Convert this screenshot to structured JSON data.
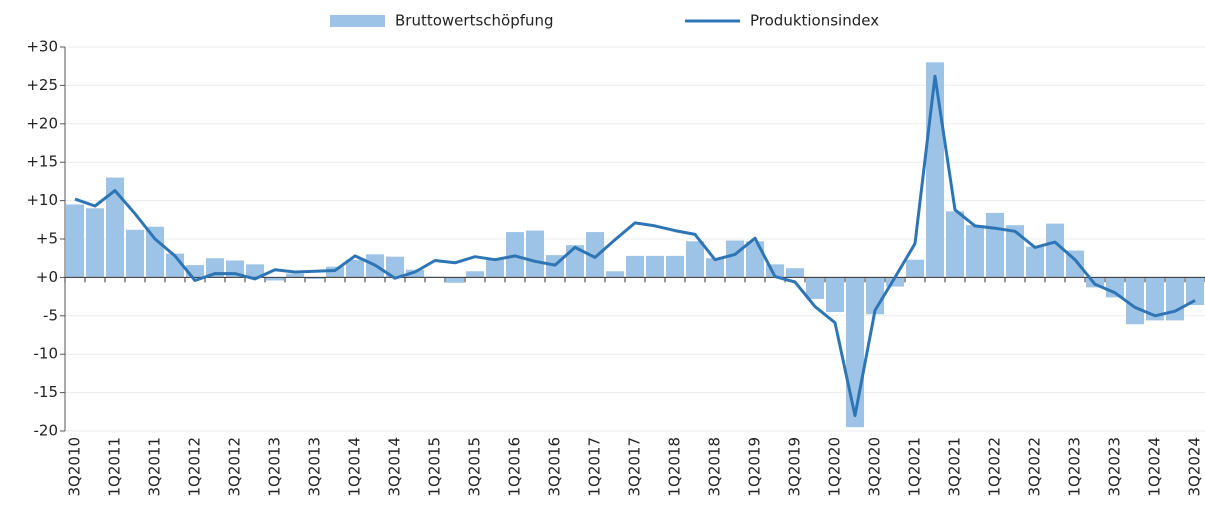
{
  "chart_data": {
    "type": "bar_line",
    "categories": [
      "3Q2010",
      null,
      "1Q2011",
      null,
      "3Q2011",
      null,
      "1Q2012",
      null,
      "3Q2012",
      null,
      "1Q2013",
      null,
      "3Q2013",
      null,
      "1Q2014",
      null,
      "3Q2014",
      null,
      "1Q2015",
      null,
      "3Q2015",
      null,
      "1Q2016",
      null,
      "3Q2016",
      null,
      "1Q2017",
      null,
      "3Q2017",
      null,
      "1Q2018",
      null,
      "3Q2018",
      null,
      "1Q2019",
      null,
      "3Q2019",
      null,
      "1Q2020",
      null,
      "3Q2020",
      null,
      "1Q2021",
      null,
      "3Q2021",
      null,
      "1Q2022",
      null,
      "3Q2022",
      null,
      "1Q2023",
      null,
      "3Q2023",
      null,
      "1Q2024",
      null,
      "3Q2024"
    ],
    "series": [
      {
        "name": "Bruttowertschöpfung",
        "type": "bar",
        "color": "#9dc3e6",
        "values": [
          9.5,
          9.0,
          13.0,
          6.2,
          6.6,
          3.1,
          1.6,
          2.5,
          2.2,
          1.7,
          -0.4,
          0.5,
          -0.2,
          1.4,
          2.3,
          3.0,
          2.7,
          1.0,
          0.1,
          -0.7,
          0.8,
          2.5,
          5.9,
          6.1,
          2.9,
          4.2,
          5.9,
          0.8,
          2.8,
          2.8,
          2.8,
          4.7,
          2.5,
          4.8,
          4.7,
          1.7,
          1.2,
          -2.8,
          -4.5,
          -19.5,
          -4.8,
          -1.2,
          2.3,
          28.0,
          8.6,
          6.8,
          8.4,
          6.8,
          4.0,
          7.0,
          3.5,
          -1.3,
          -2.6,
          -6.1,
          -5.6,
          -5.6,
          -3.6
        ]
      },
      {
        "name": "Produktionsindex",
        "type": "line",
        "color": "#2e75b6",
        "values": [
          10.2,
          9.3,
          11.3,
          8.3,
          5.0,
          2.8,
          -0.4,
          0.5,
          0.5,
          -0.2,
          1.0,
          0.7,
          0.8,
          0.9,
          2.8,
          1.6,
          -0.1,
          0.7,
          2.2,
          1.9,
          2.7,
          2.3,
          2.8,
          2.1,
          1.6,
          3.9,
          2.6,
          4.9,
          7.1,
          6.7,
          6.1,
          5.6,
          2.3,
          3.0,
          5.1,
          0.1,
          -0.6,
          -3.8,
          -5.9,
          -18.0,
          -4.3,
          0.0,
          4.4,
          26.2,
          8.8,
          6.7,
          6.4,
          6.0,
          3.9,
          4.6,
          2.3,
          -0.9,
          -2.0,
          -3.9,
          -5.0,
          -4.4,
          -3.0
        ]
      }
    ],
    "ylim": [
      -20,
      30
    ],
    "yticks": [
      -20,
      -15,
      -10,
      -5,
      {
        "value": 0,
        "label": "+0"
      },
      {
        "value": 5,
        "label": "+5"
      },
      {
        "value": 10,
        "label": "+10"
      },
      {
        "value": 15,
        "label": "+15"
      },
      {
        "value": 20,
        "label": "+20"
      },
      {
        "value": 25,
        "label": "+25"
      },
      {
        "value": 30,
        "label": "+30"
      }
    ],
    "grid": true,
    "legend": "top"
  }
}
